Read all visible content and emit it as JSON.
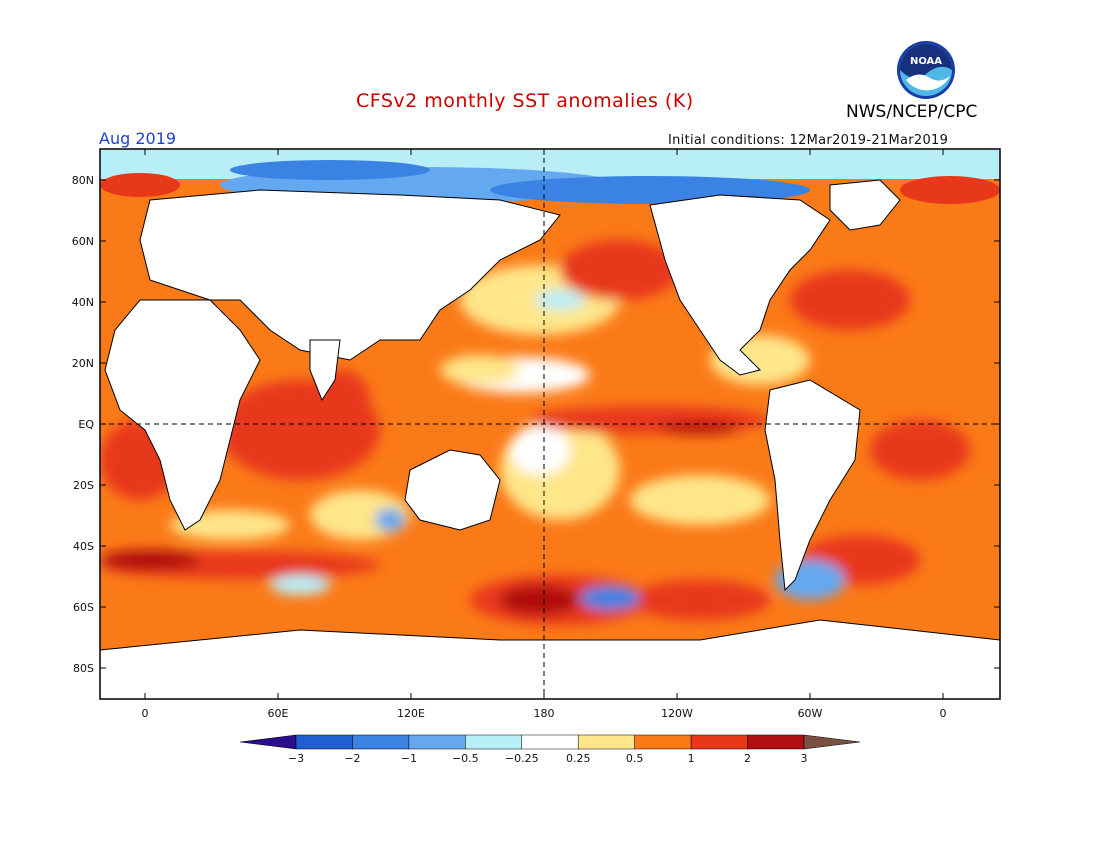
{
  "title": "CFSv2 monthly SST anomalies (K)",
  "org": "NWS/NCEP/CPC",
  "logo_text": "NOAA",
  "month_label": "Aug 2019",
  "initial_conditions": "Initial conditions: 12Mar2019-21Mar2019",
  "map_axes": {
    "lat_labels": [
      "80N",
      "60N",
      "40N",
      "20N",
      "EQ",
      "20S",
      "40S",
      "60S",
      "80S"
    ],
    "lon_labels": [
      "0",
      "60E",
      "120E",
      "180",
      "120W",
      "60W",
      "0"
    ]
  },
  "colorbar": {
    "labels": [
      "-3",
      "-2",
      "-1",
      "-0.5",
      "-0.25",
      "0.25",
      "0.5",
      "1",
      "2",
      "3"
    ],
    "colors": [
      "#2a0e8c",
      "#1f5fcf",
      "#3a82e4",
      "#64a8f0",
      "#b8eef8",
      "#ffffff",
      "#ffe68a",
      "#fb7a18",
      "#e8381a",
      "#b01010",
      "#7a5040"
    ]
  },
  "colors": {
    "title": "#cc0000",
    "month": "#1f3fd0",
    "land": "#ffffff",
    "warm_weak": "#ffe68a",
    "warm_mid": "#fb7a18",
    "warm_strong": "#e8381a",
    "warm_extreme": "#b01010",
    "cool_weak": "#b8eef8",
    "cool_mid": "#64a8f0",
    "cool_strong": "#3a82e4"
  }
}
